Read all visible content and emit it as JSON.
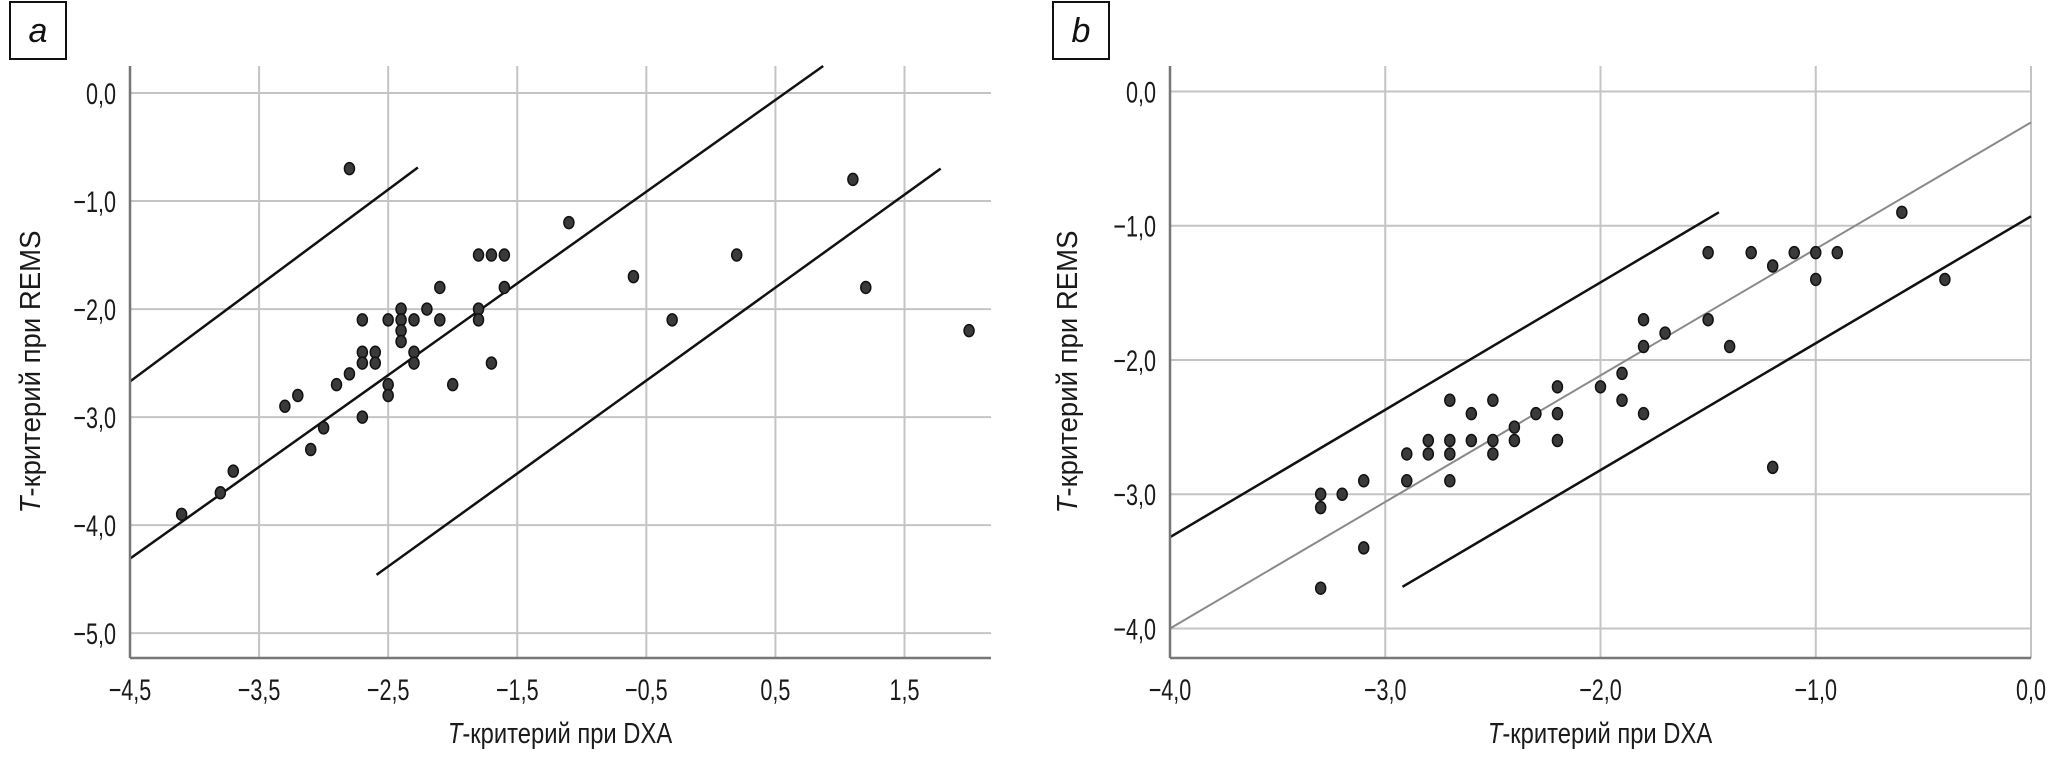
{
  "chart_data": [
    {
      "type": "scatter",
      "panel_label": "a",
      "xlabel_italic": "T",
      "xlabel_rest": "-критерий при DXA",
      "ylabel_italic": "T",
      "ylabel_rest": "-критерий при REMS",
      "xlim": [
        -4.5,
        2.17
      ],
      "ylim": [
        -5.23,
        0.25
      ],
      "xticks": [
        -4.5,
        -3.5,
        -2.5,
        -1.5,
        -0.5,
        0.5,
        1.5
      ],
      "xtick_labels": [
        "−4,5",
        "−3,5",
        "−2,5",
        "−1,5",
        "−0,5",
        "0,5",
        "1,5"
      ],
      "yticks": [
        0,
        -1,
        -2,
        -3,
        -4,
        -5
      ],
      "ytick_labels": [
        "0,0",
        "−1,0",
        "−2,0",
        "−3,0",
        "−4,0",
        "−5,0"
      ],
      "grid": true,
      "points": [
        [
          -2.8,
          -0.7
        ],
        [
          1.1,
          -0.8
        ],
        [
          -1.1,
          -1.2
        ],
        [
          0.2,
          -1.5
        ],
        [
          -0.6,
          -1.7
        ],
        [
          1.2,
          -1.8
        ],
        [
          -0.3,
          -2.1
        ],
        [
          2.0,
          -2.2
        ],
        [
          -1.8,
          -1.5
        ],
        [
          -1.7,
          -1.5
        ],
        [
          -1.6,
          -1.5
        ],
        [
          -2.1,
          -1.8
        ],
        [
          -1.6,
          -1.8
        ],
        [
          -2.4,
          -2.0
        ],
        [
          -2.2,
          -2.0
        ],
        [
          -1.8,
          -2.0
        ],
        [
          -2.7,
          -2.1
        ],
        [
          -2.5,
          -2.1
        ],
        [
          -2.4,
          -2.1
        ],
        [
          -2.3,
          -2.1
        ],
        [
          -2.1,
          -2.1
        ],
        [
          -1.8,
          -2.1
        ],
        [
          -2.4,
          -2.2
        ],
        [
          -2.4,
          -2.3
        ],
        [
          -2.7,
          -2.4
        ],
        [
          -2.6,
          -2.4
        ],
        [
          -2.3,
          -2.4
        ],
        [
          -2.7,
          -2.5
        ],
        [
          -2.6,
          -2.5
        ],
        [
          -2.3,
          -2.5
        ],
        [
          -1.7,
          -2.5
        ],
        [
          -2.8,
          -2.6
        ],
        [
          -2.9,
          -2.7
        ],
        [
          -2.5,
          -2.7
        ],
        [
          -2.0,
          -2.7
        ],
        [
          -2.5,
          -2.8
        ],
        [
          -3.3,
          -2.9
        ],
        [
          -3.2,
          -2.8
        ],
        [
          -2.7,
          -3.0
        ],
        [
          -3.0,
          -3.1
        ],
        [
          -3.1,
          -3.3
        ],
        [
          -3.7,
          -3.5
        ],
        [
          -3.8,
          -3.7
        ],
        [
          -4.1,
          -3.9
        ]
      ],
      "lines": [
        {
          "name": "upper-limit",
          "color": "#111111",
          "from": [
            -4.5,
            -2.67
          ],
          "to": [
            -2.27,
            -0.69
          ]
        },
        {
          "name": "regression",
          "color": "#111111",
          "from": [
            -4.5,
            -4.31
          ],
          "to": [
            0.87,
            0.25
          ]
        },
        {
          "name": "lower-limit",
          "color": "#111111",
          "from": [
            -2.59,
            -4.46
          ],
          "to": [
            1.78,
            -0.7
          ]
        }
      ]
    },
    {
      "type": "scatter",
      "panel_label": "b",
      "xlabel_italic": "T",
      "xlabel_rest": "-критерий при DXA",
      "ylabel_italic": "T",
      "ylabel_rest": "-критерий при REMS",
      "xlim": [
        -4.0,
        0.0
      ],
      "ylim": [
        -4.22,
        0.19
      ],
      "xticks": [
        -4,
        -3,
        -2,
        -1,
        0
      ],
      "xtick_labels": [
        "−4,0",
        "−3,0",
        "−2,0",
        "−1,0",
        "0,0"
      ],
      "yticks": [
        0,
        -1,
        -2,
        -3,
        -4
      ],
      "ytick_labels": [
        "0,0",
        "−1,0",
        "−2,0",
        "−3,0",
        "−4,0"
      ],
      "grid": true,
      "points": [
        [
          -0.6,
          -0.9
        ],
        [
          -0.4,
          -1.4
        ],
        [
          -1.5,
          -1.2
        ],
        [
          -1.3,
          -1.2
        ],
        [
          -1.1,
          -1.2
        ],
        [
          -1.0,
          -1.2
        ],
        [
          -0.9,
          -1.2
        ],
        [
          -1.2,
          -1.3
        ],
        [
          -1.0,
          -1.4
        ],
        [
          -1.8,
          -1.7
        ],
        [
          -1.5,
          -1.7
        ],
        [
          -1.7,
          -1.8
        ],
        [
          -1.8,
          -1.9
        ],
        [
          -1.4,
          -1.9
        ],
        [
          -1.9,
          -2.1
        ],
        [
          -2.0,
          -2.2
        ],
        [
          -2.2,
          -2.2
        ],
        [
          -1.9,
          -2.3
        ],
        [
          -1.8,
          -2.4
        ],
        [
          -2.7,
          -2.3
        ],
        [
          -2.5,
          -2.3
        ],
        [
          -2.6,
          -2.4
        ],
        [
          -2.3,
          -2.4
        ],
        [
          -2.2,
          -2.4
        ],
        [
          -2.4,
          -2.5
        ],
        [
          -2.8,
          -2.6
        ],
        [
          -2.7,
          -2.6
        ],
        [
          -2.6,
          -2.6
        ],
        [
          -2.5,
          -2.6
        ],
        [
          -2.4,
          -2.6
        ],
        [
          -2.2,
          -2.6
        ],
        [
          -2.9,
          -2.7
        ],
        [
          -2.8,
          -2.7
        ],
        [
          -2.7,
          -2.7
        ],
        [
          -2.5,
          -2.7
        ],
        [
          -2.9,
          -2.9
        ],
        [
          -2.7,
          -2.9
        ],
        [
          -3.1,
          -2.9
        ],
        [
          -3.3,
          -3.0
        ],
        [
          -3.2,
          -3.0
        ],
        [
          -3.3,
          -3.1
        ],
        [
          -3.1,
          -3.4
        ],
        [
          -3.3,
          -3.7
        ],
        [
          -1.2,
          -2.8
        ]
      ],
      "lines": [
        {
          "name": "upper-limit",
          "color": "#111111",
          "from": [
            -4.0,
            -3.32
          ],
          "to": [
            -1.45,
            -0.9
          ]
        },
        {
          "name": "regression",
          "color": "#8a8a8a",
          "from": [
            -4.0,
            -4.0
          ],
          "to": [
            0.0,
            -0.23
          ]
        },
        {
          "name": "lower-limit",
          "color": "#111111",
          "from": [
            -2.92,
            -3.69
          ],
          "to": [
            0.0,
            -0.93
          ]
        }
      ]
    }
  ]
}
